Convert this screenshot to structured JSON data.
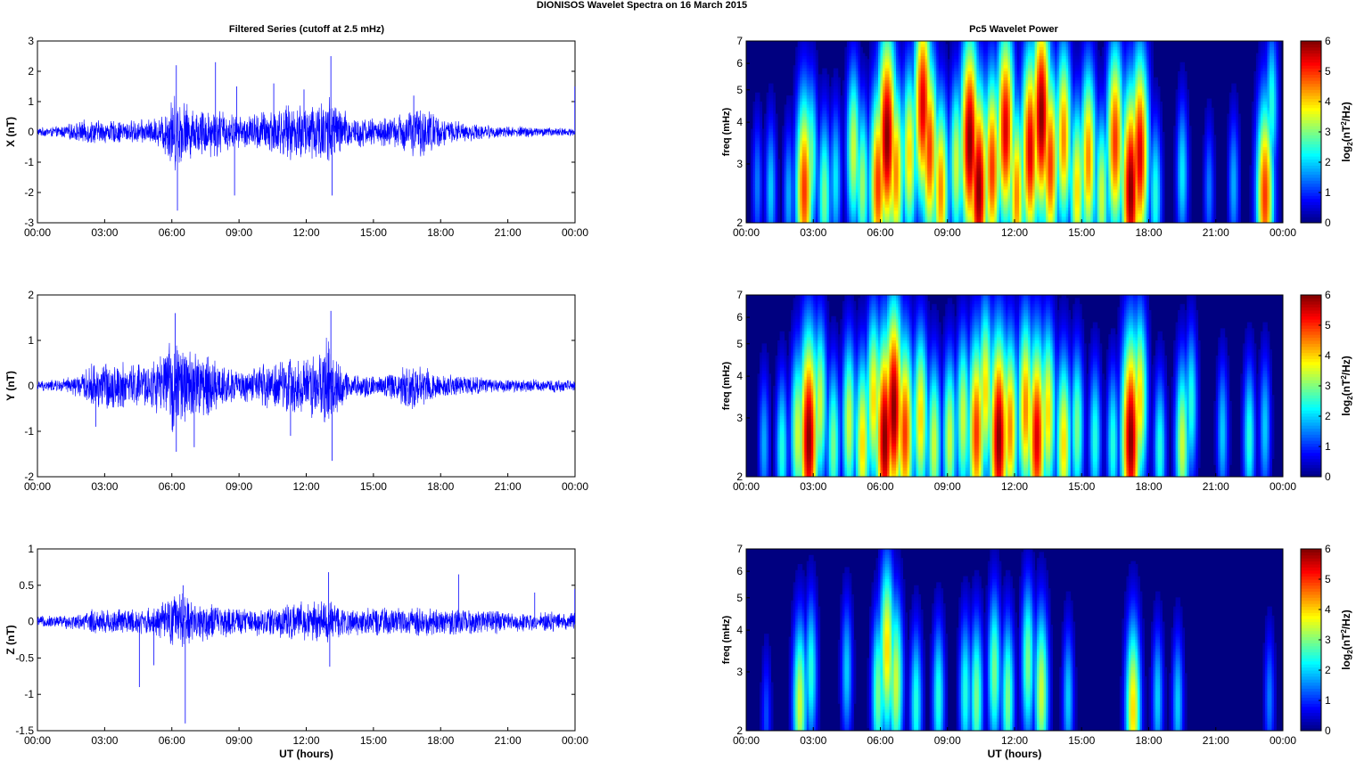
{
  "figure_title": "DIONISOS Wavelet Spectra on 16 March     2015",
  "col_titles": {
    "left": "Filtered Series (cutoff at 2.5 mHz)",
    "right": "Pc5 Wavelet Power"
  },
  "colors": {
    "series": "#0000ff",
    "background": "#ffffff",
    "axis": "#000000"
  },
  "chart_data": [
    {
      "type": "line",
      "title": "Filtered Series (cutoff at 2.5 mHz)",
      "xlabel": "",
      "ylabel": "X (nT)",
      "xlim": [
        "00:00",
        "24:00"
      ],
      "ylim": [
        -3,
        3
      ],
      "xticks": [
        "00:00",
        "03:00",
        "06:00",
        "09:00",
        "12:00",
        "15:00",
        "18:00",
        "21:00",
        "00:00"
      ],
      "yticks": [
        "-3",
        "-2",
        "-1",
        "0",
        "1",
        "2",
        "3"
      ],
      "yvals": [
        -3,
        -2,
        -1,
        0,
        1,
        2,
        3
      ],
      "envelope_x_hours": [
        0,
        1,
        2,
        2.5,
        3,
        4,
        5,
        5.5,
        6,
        6.5,
        7,
        7.5,
        8,
        9,
        10,
        10.5,
        11,
        12,
        12.5,
        13,
        13.5,
        14,
        15,
        16,
        16.5,
        17,
        17.5,
        18,
        19,
        20,
        21,
        22,
        23,
        24
      ],
      "envelope_amp": [
        0.15,
        0.2,
        0.4,
        0.45,
        0.4,
        0.4,
        0.45,
        0.55,
        1.4,
        1.2,
        0.8,
        0.9,
        0.9,
        0.55,
        0.75,
        0.9,
        0.9,
        1.1,
        1.2,
        1.4,
        0.9,
        0.6,
        0.5,
        0.55,
        0.9,
        0.85,
        0.9,
        0.5,
        0.35,
        0.25,
        0.2,
        0.2,
        0.15,
        0.15
      ],
      "spikes": [
        {
          "t": 6.2,
          "v": 2.2
        },
        {
          "t": 6.25,
          "v": -2.6
        },
        {
          "t": 7.95,
          "v": 2.3
        },
        {
          "t": 8.8,
          "v": -2.1
        },
        {
          "t": 8.9,
          "v": 1.5
        },
        {
          "t": 10.55,
          "v": 1.6
        },
        {
          "t": 11.9,
          "v": 1.4
        },
        {
          "t": 13.1,
          "v": 2.5
        },
        {
          "t": 13.15,
          "v": -2.1
        },
        {
          "t": 16.8,
          "v": 1.2
        },
        {
          "t": 23.99,
          "v": 1.5
        }
      ]
    },
    {
      "type": "line",
      "title": "",
      "xlabel": "",
      "ylabel": "Y (nT)",
      "xlim": [
        "00:00",
        "24:00"
      ],
      "ylim": [
        -2,
        2
      ],
      "xticks": [
        "00:00",
        "03:00",
        "06:00",
        "09:00",
        "12:00",
        "15:00",
        "18:00",
        "21:00",
        "00:00"
      ],
      "yticks": [
        "-2",
        "-1",
        "0",
        "1",
        "2"
      ],
      "yvals": [
        -2,
        -1,
        0,
        1,
        2
      ],
      "envelope_x_hours": [
        0,
        1,
        2,
        2.5,
        3,
        4,
        5,
        5.5,
        6,
        6.5,
        7,
        7.5,
        8,
        9,
        10,
        10.5,
        11,
        12,
        12.5,
        13,
        13.5,
        14,
        15,
        16,
        16.5,
        17,
        17.5,
        18,
        19,
        20,
        21,
        22,
        23,
        24
      ],
      "envelope_amp": [
        0.12,
        0.15,
        0.3,
        0.55,
        0.6,
        0.55,
        0.55,
        0.75,
        1.1,
        1.0,
        0.9,
        0.8,
        0.6,
        0.35,
        0.5,
        0.6,
        0.65,
        0.7,
        0.85,
        1.2,
        0.55,
        0.3,
        0.25,
        0.35,
        0.6,
        0.55,
        0.45,
        0.3,
        0.25,
        0.2,
        0.15,
        0.15,
        0.15,
        0.12
      ],
      "spikes": [
        {
          "t": 6.15,
          "v": 1.6
        },
        {
          "t": 6.2,
          "v": -1.45
        },
        {
          "t": 7.0,
          "v": -1.35
        },
        {
          "t": 11.3,
          "v": -1.1
        },
        {
          "t": 13.1,
          "v": 1.65
        },
        {
          "t": 13.15,
          "v": -1.65
        },
        {
          "t": 2.6,
          "v": -0.9
        }
      ]
    },
    {
      "type": "line",
      "title": "",
      "xlabel": "UT (hours)",
      "ylabel": "Z (nT)",
      "xlim": [
        "00:00",
        "24:00"
      ],
      "ylim": [
        -1.5,
        1
      ],
      "xticks": [
        "00:00",
        "03:00",
        "06:00",
        "09:00",
        "12:00",
        "15:00",
        "18:00",
        "21:00",
        "00:00"
      ],
      "yticks": [
        "-1.5",
        "-1",
        "-0.5",
        "0",
        "0.5",
        "1"
      ],
      "yvals": [
        -1.5,
        -1,
        -0.5,
        0,
        0.5,
        1
      ],
      "envelope_x_hours": [
        0,
        1,
        2,
        2.5,
        3,
        4,
        5,
        5.5,
        6,
        6.5,
        7,
        7.5,
        8,
        9,
        10,
        10.5,
        11,
        12,
        12.5,
        13,
        13.5,
        14,
        15,
        16,
        16.5,
        17,
        17.5,
        18,
        19,
        20,
        21,
        22,
        23,
        24
      ],
      "envelope_amp": [
        0.08,
        0.1,
        0.12,
        0.2,
        0.2,
        0.2,
        0.2,
        0.25,
        0.4,
        0.45,
        0.3,
        0.3,
        0.25,
        0.2,
        0.2,
        0.25,
        0.25,
        0.3,
        0.3,
        0.35,
        0.25,
        0.2,
        0.2,
        0.2,
        0.2,
        0.22,
        0.2,
        0.2,
        0.2,
        0.2,
        0.15,
        0.15,
        0.15,
        0.15
      ],
      "spikes": [
        {
          "t": 4.55,
          "v": -0.9
        },
        {
          "t": 5.2,
          "v": -0.6
        },
        {
          "t": 6.6,
          "v": -1.4
        },
        {
          "t": 6.5,
          "v": 0.5
        },
        {
          "t": 13.0,
          "v": 0.68
        },
        {
          "t": 13.05,
          "v": -0.62
        },
        {
          "t": 18.8,
          "v": 0.65
        },
        {
          "t": 22.2,
          "v": 0.4
        },
        {
          "t": 23.99,
          "v": 0.45
        }
      ]
    },
    {
      "type": "heatmap",
      "title": "Pc5 Wavelet Power",
      "xlabel": "",
      "ylabel": "freq (mHz)",
      "xlim": [
        "00:00",
        "24:00"
      ],
      "ylim": [
        2,
        7
      ],
      "yscale": "log",
      "xticks": [
        "00:00",
        "03:00",
        "06:00",
        "09:00",
        "12:00",
        "15:00",
        "18:00",
        "21:00",
        "00:00"
      ],
      "yticks": [
        "2",
        "3",
        "4",
        "5",
        "6",
        "7"
      ],
      "yvals": [
        2,
        3,
        4,
        5,
        6,
        7
      ],
      "colorbar": {
        "label": "log2(nT2/Hz)",
        "range": [
          0,
          6
        ],
        "ticks": [
          "0",
          "1",
          "2",
          "3",
          "4",
          "5",
          "6"
        ],
        "colormap": "jet"
      },
      "blobs": [
        {
          "t": 0.5,
          "f": 2.6,
          "p": 1.5
        },
        {
          "t": 1.1,
          "f": 2.5,
          "p": 2.0
        },
        {
          "t": 1.9,
          "f": 2.4,
          "p": 1.8
        },
        {
          "t": 2.6,
          "f": 2.5,
          "p": 5.0
        },
        {
          "t": 2.9,
          "f": 3.1,
          "p": 3.0
        },
        {
          "t": 3.5,
          "f": 2.4,
          "p": 3.0
        },
        {
          "t": 4.0,
          "f": 2.7,
          "p": 2.2
        },
        {
          "t": 4.8,
          "f": 3.3,
          "p": 3.5
        },
        {
          "t": 5.2,
          "f": 2.6,
          "p": 3.2
        },
        {
          "t": 5.9,
          "f": 2.6,
          "p": 5.0
        },
        {
          "t": 6.3,
          "f": 3.6,
          "p": 6.0
        },
        {
          "t": 6.7,
          "f": 2.8,
          "p": 4.5
        },
        {
          "t": 7.3,
          "f": 3.2,
          "p": 4.0
        },
        {
          "t": 7.9,
          "f": 4.5,
          "p": 5.5
        },
        {
          "t": 8.2,
          "f": 3.3,
          "p": 5.0
        },
        {
          "t": 8.7,
          "f": 2.5,
          "p": 4.5
        },
        {
          "t": 9.4,
          "f": 3.0,
          "p": 3.5
        },
        {
          "t": 10.0,
          "f": 3.5,
          "p": 6.0
        },
        {
          "t": 10.4,
          "f": 2.5,
          "p": 6.0
        },
        {
          "t": 11.0,
          "f": 2.9,
          "p": 5.0
        },
        {
          "t": 11.6,
          "f": 3.8,
          "p": 5.5
        },
        {
          "t": 12.1,
          "f": 2.4,
          "p": 4.5
        },
        {
          "t": 12.7,
          "f": 3.3,
          "p": 5.5
        },
        {
          "t": 13.2,
          "f": 4.2,
          "p": 6.0
        },
        {
          "t": 13.6,
          "f": 3.0,
          "p": 5.0
        },
        {
          "t": 14.2,
          "f": 3.6,
          "p": 4.5
        },
        {
          "t": 14.8,
          "f": 2.5,
          "p": 4.0
        },
        {
          "t": 15.3,
          "f": 3.1,
          "p": 4.5
        },
        {
          "t": 15.9,
          "f": 2.4,
          "p": 3.5
        },
        {
          "t": 16.5,
          "f": 3.5,
          "p": 5.0
        },
        {
          "t": 17.2,
          "f": 2.5,
          "p": 6.0
        },
        {
          "t": 17.6,
          "f": 3.2,
          "p": 5.5
        },
        {
          "t": 18.3,
          "f": 2.4,
          "p": 2.5
        },
        {
          "t": 19.5,
          "f": 2.8,
          "p": 2.2
        },
        {
          "t": 20.7,
          "f": 2.5,
          "p": 1.5
        },
        {
          "t": 21.8,
          "f": 2.6,
          "p": 1.8
        },
        {
          "t": 23.2,
          "f": 2.4,
          "p": 5.0
        },
        {
          "t": 23.5,
          "f": 4.5,
          "p": 2.5
        }
      ]
    },
    {
      "type": "heatmap",
      "title": "",
      "xlabel": "",
      "ylabel": "freq (mHz)",
      "xlim": [
        "00:00",
        "24:00"
      ],
      "ylim": [
        2,
        7
      ],
      "yscale": "log",
      "xticks": [
        "00:00",
        "03:00",
        "06:00",
        "09:00",
        "12:00",
        "15:00",
        "18:00",
        "21:00",
        "00:00"
      ],
      "yticks": [
        "2",
        "3",
        "4",
        "5",
        "6",
        "7"
      ],
      "yvals": [
        2,
        3,
        4,
        5,
        6,
        7
      ],
      "colorbar": {
        "label": "log2(nT2/Hz)",
        "range": [
          0,
          6
        ],
        "ticks": [
          "0",
          "1",
          "2",
          "3",
          "4",
          "5",
          "6"
        ],
        "colormap": "jet"
      },
      "blobs": [
        {
          "t": 0.8,
          "f": 2.5,
          "p": 1.8
        },
        {
          "t": 1.6,
          "f": 2.4,
          "p": 2.5
        },
        {
          "t": 2.3,
          "f": 2.7,
          "p": 3.5
        },
        {
          "t": 2.8,
          "f": 2.6,
          "p": 6.0
        },
        {
          "t": 3.3,
          "f": 3.3,
          "p": 3.5
        },
        {
          "t": 3.9,
          "f": 2.5,
          "p": 3.0
        },
        {
          "t": 4.6,
          "f": 2.9,
          "p": 3.5
        },
        {
          "t": 5.2,
          "f": 2.5,
          "p": 4.0
        },
        {
          "t": 5.7,
          "f": 3.4,
          "p": 4.0
        },
        {
          "t": 6.2,
          "f": 2.6,
          "p": 6.0
        },
        {
          "t": 6.6,
          "f": 3.2,
          "p": 6.0
        },
        {
          "t": 7.1,
          "f": 2.7,
          "p": 5.0
        },
        {
          "t": 7.8,
          "f": 3.0,
          "p": 4.0
        },
        {
          "t": 8.4,
          "f": 2.5,
          "p": 3.5
        },
        {
          "t": 9.1,
          "f": 2.6,
          "p": 3.5
        },
        {
          "t": 9.7,
          "f": 3.0,
          "p": 3.5
        },
        {
          "t": 10.3,
          "f": 2.7,
          "p": 5.0
        },
        {
          "t": 10.7,
          "f": 3.6,
          "p": 4.0
        },
        {
          "t": 11.3,
          "f": 2.6,
          "p": 6.0
        },
        {
          "t": 11.8,
          "f": 2.8,
          "p": 4.5
        },
        {
          "t": 12.5,
          "f": 3.2,
          "p": 4.5
        },
        {
          "t": 13.0,
          "f": 2.6,
          "p": 5.5
        },
        {
          "t": 13.5,
          "f": 3.1,
          "p": 4.0
        },
        {
          "t": 14.2,
          "f": 2.5,
          "p": 4.0
        },
        {
          "t": 14.8,
          "f": 2.8,
          "p": 3.0
        },
        {
          "t": 15.6,
          "f": 2.6,
          "p": 2.5
        },
        {
          "t": 16.4,
          "f": 2.5,
          "p": 2.5
        },
        {
          "t": 17.2,
          "f": 2.6,
          "p": 6.0
        },
        {
          "t": 17.6,
          "f": 3.4,
          "p": 4.0
        },
        {
          "t": 18.5,
          "f": 2.4,
          "p": 2.5
        },
        {
          "t": 19.5,
          "f": 2.5,
          "p": 3.5
        },
        {
          "t": 19.9,
          "f": 3.3,
          "p": 2.5
        },
        {
          "t": 21.3,
          "f": 2.7,
          "p": 2.0
        },
        {
          "t": 22.5,
          "f": 2.6,
          "p": 2.5
        },
        {
          "t": 23.2,
          "f": 2.8,
          "p": 2.0
        }
      ]
    },
    {
      "type": "heatmap",
      "title": "",
      "xlabel": "UT (hours)",
      "ylabel": "freq (mHz)",
      "xlim": [
        "00:00",
        "24:00"
      ],
      "ylim": [
        2,
        7
      ],
      "yscale": "log",
      "xticks": [
        "00:00",
        "03:00",
        "06:00",
        "09:00",
        "12:00",
        "15:00",
        "18:00",
        "21:00",
        "00:00"
      ],
      "yticks": [
        "2",
        "3",
        "4",
        "5",
        "6",
        "7"
      ],
      "yvals": [
        2,
        3,
        4,
        5,
        6,
        7
      ],
      "colorbar": {
        "label": "log2(nT2/Hz)",
        "range": [
          0,
          6
        ],
        "ticks": [
          "0",
          "1",
          "2",
          "3",
          "4",
          "5",
          "6"
        ],
        "colormap": "jet"
      },
      "blobs": [
        {
          "t": 0.9,
          "f": 2.2,
          "p": 1.2
        },
        {
          "t": 2.4,
          "f": 2.4,
          "p": 3.5
        },
        {
          "t": 2.9,
          "f": 3.0,
          "p": 2.5
        },
        {
          "t": 4.5,
          "f": 3.0,
          "p": 2.0
        },
        {
          "t": 5.9,
          "f": 2.6,
          "p": 3.0
        },
        {
          "t": 6.3,
          "f": 3.5,
          "p": 4.0
        },
        {
          "t": 6.7,
          "f": 2.8,
          "p": 3.5
        },
        {
          "t": 7.6,
          "f": 2.4,
          "p": 2.5
        },
        {
          "t": 8.6,
          "f": 2.5,
          "p": 2.5
        },
        {
          "t": 9.8,
          "f": 2.6,
          "p": 2.5
        },
        {
          "t": 10.3,
          "f": 2.5,
          "p": 3.0
        },
        {
          "t": 11.1,
          "f": 3.0,
          "p": 3.0
        },
        {
          "t": 11.7,
          "f": 2.5,
          "p": 3.0
        },
        {
          "t": 12.6,
          "f": 3.2,
          "p": 3.0
        },
        {
          "t": 13.2,
          "f": 2.6,
          "p": 3.5
        },
        {
          "t": 14.4,
          "f": 2.5,
          "p": 2.0
        },
        {
          "t": 17.3,
          "f": 2.3,
          "p": 4.0
        },
        {
          "t": 18.4,
          "f": 2.5,
          "p": 2.0
        },
        {
          "t": 19.3,
          "f": 2.4,
          "p": 2.0
        },
        {
          "t": 23.4,
          "f": 2.5,
          "p": 1.5
        }
      ]
    }
  ]
}
